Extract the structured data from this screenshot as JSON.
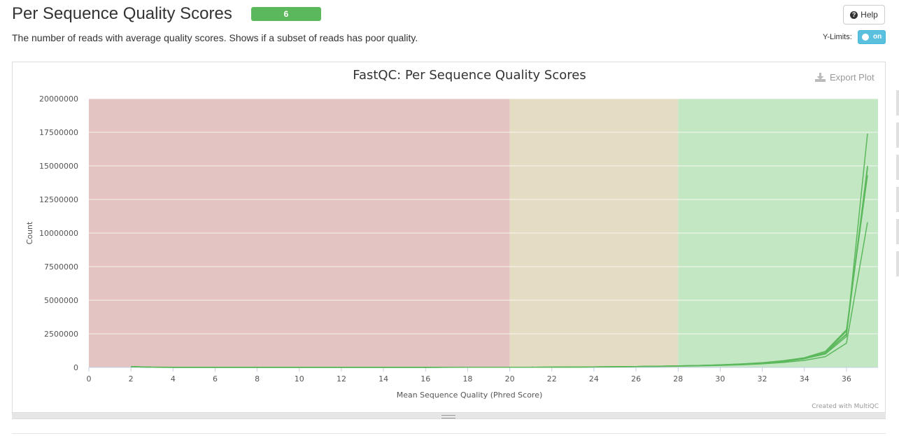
{
  "header": {
    "title": "Per Sequence Quality Scores",
    "badge": "6",
    "help_label": "Help",
    "description": "The number of reads with average quality scores. Shows if a subset of reads has poor quality.",
    "ylimits_label": "Y-Limits:",
    "ylimits_toggle": "on"
  },
  "plot": {
    "export_label": "Export Plot",
    "credit": "Created with MultiQC"
  },
  "colors": {
    "badge": "#5cb85c",
    "toggle": "#5bc0de",
    "band_fail": "#e4c3c3",
    "band_warn": "#e5dcc4",
    "band_pass": "#c3e7c3",
    "series": "#5cb85c"
  },
  "chart_data": {
    "type": "line",
    "title": "FastQC: Per Sequence Quality Scores",
    "xlabel": "Mean Sequence Quality (Phred Score)",
    "ylabel": "Count",
    "xlim": [
      0,
      37.5
    ],
    "ylim": [
      0,
      20000000
    ],
    "xticks": [
      0,
      2,
      4,
      6,
      8,
      10,
      12,
      14,
      16,
      18,
      20,
      22,
      24,
      26,
      28,
      30,
      32,
      34,
      36
    ],
    "yticks": [
      0,
      2500000,
      5000000,
      7500000,
      10000000,
      12500000,
      15000000,
      17500000,
      20000000
    ],
    "grid": true,
    "bands": [
      {
        "from": 0,
        "to": 20,
        "status": "fail"
      },
      {
        "from": 20,
        "to": 28,
        "status": "warn"
      },
      {
        "from": 28,
        "to": 37.5,
        "status": "pass"
      }
    ],
    "x": [
      2,
      3,
      4,
      5,
      6,
      7,
      8,
      9,
      10,
      11,
      12,
      13,
      14,
      15,
      16,
      17,
      18,
      19,
      20,
      21,
      22,
      23,
      24,
      25,
      26,
      27,
      28,
      29,
      30,
      31,
      32,
      33,
      34,
      35,
      36,
      37
    ],
    "series": [
      {
        "values": [
          60000,
          20000,
          8000,
          5000,
          4000,
          4000,
          4000,
          4000,
          4000,
          4000,
          5000,
          5000,
          6000,
          6000,
          7000,
          8000,
          9000,
          10000,
          12000,
          15000,
          20000,
          28000,
          38000,
          50000,
          65000,
          85000,
          110000,
          140000,
          180000,
          240000,
          320000,
          450000,
          650000,
          1000000,
          2300000,
          17400000
        ]
      },
      {
        "values": [
          55000,
          18000,
          7000,
          5000,
          4000,
          4000,
          4000,
          4000,
          4000,
          4000,
          5000,
          5000,
          6000,
          6000,
          7000,
          8000,
          9000,
          10000,
          12000,
          15000,
          19000,
          27000,
          36000,
          48000,
          62000,
          82000,
          105000,
          135000,
          175000,
          235000,
          315000,
          440000,
          640000,
          1050000,
          2500000,
          15000000
        ]
      },
      {
        "values": [
          55000,
          18000,
          7000,
          5000,
          4000,
          4000,
          4000,
          4000,
          4000,
          4000,
          5000,
          5000,
          6000,
          6000,
          7000,
          8000,
          9000,
          10000,
          12000,
          15000,
          20000,
          28000,
          38000,
          50000,
          64000,
          85000,
          110000,
          140000,
          185000,
          250000,
          335000,
          470000,
          680000,
          1100000,
          2700000,
          14800000
        ]
      },
      {
        "values": [
          60000,
          20000,
          8000,
          5000,
          4000,
          4000,
          4000,
          4000,
          4000,
          4000,
          5000,
          5000,
          6000,
          6000,
          7000,
          8000,
          9000,
          10000,
          12000,
          15000,
          21000,
          30000,
          40000,
          53000,
          68000,
          90000,
          115000,
          148000,
          195000,
          260000,
          350000,
          500000,
          720000,
          1200000,
          2800000,
          14300000
        ]
      },
      {
        "values": [
          50000,
          16000,
          6000,
          4000,
          3000,
          3000,
          3000,
          3000,
          3000,
          3000,
          4000,
          4000,
          5000,
          5000,
          6000,
          7000,
          8000,
          9000,
          11000,
          13000,
          17000,
          24000,
          32000,
          42000,
          55000,
          72000,
          92000,
          118000,
          150000,
          200000,
          265000,
          370000,
          520000,
          800000,
          1800000,
          10800000
        ]
      },
      {
        "values": [
          55000,
          18000,
          7000,
          5000,
          4000,
          4000,
          4000,
          4000,
          4000,
          4000,
          5000,
          5000,
          6000,
          6000,
          7000,
          8000,
          9000,
          10000,
          12000,
          15000,
          19000,
          27000,
          37000,
          49000,
          63000,
          83000,
          107000,
          138000,
          180000,
          240000,
          325000,
          455000,
          660000,
          1080000,
          2450000,
          14900000
        ]
      }
    ]
  }
}
